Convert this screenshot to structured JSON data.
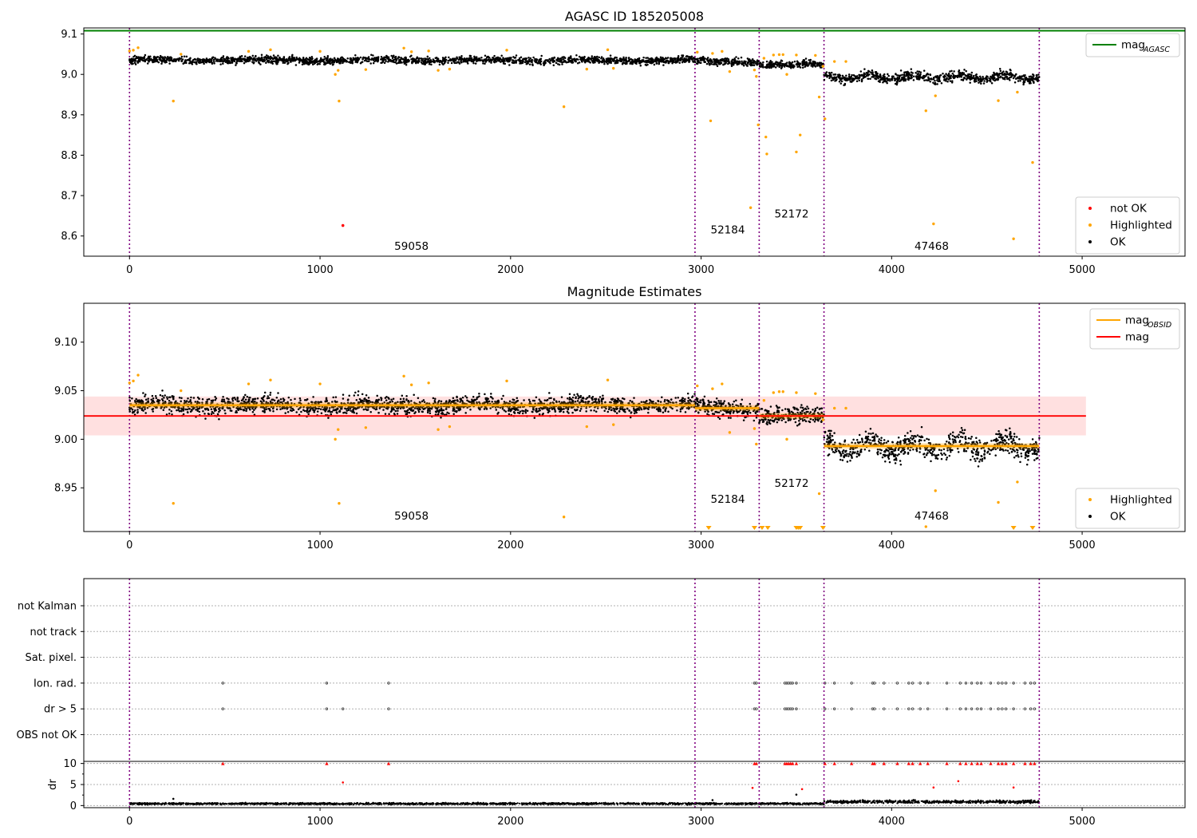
{
  "chart_data": [
    {
      "type": "scatter",
      "title": "AGASC ID 185205008",
      "xlim": [
        -240,
        5540
      ],
      "ylim": [
        8.55,
        9.115
      ],
      "xticks": [
        0,
        1000,
        2000,
        3000,
        4000,
        5000
      ],
      "yticks": [
        8.6,
        8.7,
        8.8,
        8.9,
        9.0,
        9.1
      ],
      "ytick_labels": [
        "8.6",
        "8.7",
        "8.8",
        "8.9",
        "9.0",
        "9.1"
      ],
      "obs_boundaries": [
        0,
        2968,
        3305,
        3645,
        4775
      ],
      "obs_labels": [
        {
          "text": "59058",
          "x": 1480,
          "y": 8.566
        },
        {
          "text": "52184",
          "x": 3140,
          "y": 8.606
        },
        {
          "text": "52172",
          "x": 3475,
          "y": 8.646
        },
        {
          "text": "47468",
          "x": 4210,
          "y": 8.566
        }
      ],
      "mag_agasc": 9.108,
      "ok_segments": [
        {
          "x0": 0,
          "x1": 2968,
          "mean": 9.035,
          "spread": 0.012
        },
        {
          "x0": 2968,
          "x1": 3305,
          "mean": 9.032,
          "spread": 0.012
        },
        {
          "x0": 3305,
          "x1": 3645,
          "mean": 9.024,
          "spread": 0.012
        },
        {
          "x0": 3645,
          "x1": 4775,
          "mean": 8.993,
          "spread": 0.016
        }
      ],
      "highlighted": [
        [
          0,
          9.058
        ],
        [
          20,
          9.06
        ],
        [
          45,
          9.066
        ],
        [
          230,
          8.934
        ],
        [
          270,
          9.05
        ],
        [
          625,
          9.057
        ],
        [
          740,
          9.061
        ],
        [
          1000,
          9.057
        ],
        [
          1080,
          9.0
        ],
        [
          1095,
          9.01
        ],
        [
          1100,
          8.934
        ],
        [
          1240,
          9.012
        ],
        [
          1440,
          9.065
        ],
        [
          1480,
          9.056
        ],
        [
          1570,
          9.058
        ],
        [
          1620,
          9.01
        ],
        [
          1680,
          9.013
        ],
        [
          1980,
          9.06
        ],
        [
          2280,
          8.92
        ],
        [
          2400,
          9.013
        ],
        [
          2510,
          9.061
        ],
        [
          2540,
          9.015
        ],
        [
          2980,
          9.055
        ],
        [
          3050,
          8.885
        ],
        [
          3060,
          9.052
        ],
        [
          3110,
          9.057
        ],
        [
          3150,
          9.007
        ],
        [
          3260,
          8.67
        ],
        [
          3280,
          9.011
        ],
        [
          3290,
          8.995
        ],
        [
          3300,
          8.875
        ],
        [
          3330,
          9.04
        ],
        [
          3340,
          8.845
        ],
        [
          3345,
          8.803
        ],
        [
          3380,
          9.048
        ],
        [
          3410,
          9.049
        ],
        [
          3430,
          9.049
        ],
        [
          3450,
          9.0
        ],
        [
          3500,
          8.808
        ],
        [
          3500,
          9.048
        ],
        [
          3520,
          8.85
        ],
        [
          3600,
          9.047
        ],
        [
          3620,
          8.944
        ],
        [
          3640,
          9.02
        ],
        [
          3650,
          8.89
        ],
        [
          3700,
          9.032
        ],
        [
          3760,
          9.032
        ],
        [
          4180,
          8.91
        ],
        [
          4220,
          8.63
        ],
        [
          4230,
          8.947
        ],
        [
          4560,
          8.935
        ],
        [
          4640,
          8.593
        ],
        [
          4660,
          8.956
        ],
        [
          4740,
          8.782
        ]
      ],
      "not_ok": [
        [
          1120,
          8.626
        ]
      ],
      "legend_agasc": [
        {
          "label": "mag",
          "sub": "AGASC",
          "color": "#008000"
        }
      ],
      "legend_points": [
        {
          "label": "not OK",
          "color": "#ff0000"
        },
        {
          "label": "Highlighted",
          "color": "#ffa500"
        },
        {
          "label": "OK",
          "color": "#000000"
        }
      ]
    },
    {
      "type": "scatter",
      "title": "Magnitude Estimates",
      "xlim": [
        -240,
        5540
      ],
      "ylim": [
        8.905,
        9.14
      ],
      "xticks": [
        0,
        1000,
        2000,
        3000,
        4000,
        5000
      ],
      "yticks": [
        8.95,
        9.0,
        9.05,
        9.1
      ],
      "ytick_labels": [
        "8.95",
        "9.00",
        "9.05",
        "9.10"
      ],
      "obs_boundaries": [
        0,
        2968,
        3305,
        3645,
        4775
      ],
      "obs_labels": [
        {
          "text": "59058",
          "x": 1480,
          "y": 8.9175
        },
        {
          "text": "52184",
          "x": 3140,
          "y": 8.9345
        },
        {
          "text": "52172",
          "x": 3475,
          "y": 8.951
        },
        {
          "text": "47468",
          "x": 4210,
          "y": 8.9175
        }
      ],
      "mag_mean": 9.024,
      "mag_band": [
        9.004,
        9.044
      ],
      "mag_band_x": [
        -240,
        5020
      ],
      "mag_obsid_steps": [
        {
          "x0": 0,
          "x1": 2968,
          "y": 9.035
        },
        {
          "x0": 2968,
          "x1": 3305,
          "y": 9.032
        },
        {
          "x0": 3305,
          "x1": 3645,
          "y": 9.024
        },
        {
          "x0": 3645,
          "x1": 4775,
          "y": 8.993
        }
      ],
      "out_of_range_markers": [
        3040,
        3280,
        3320,
        3350,
        3500,
        3510,
        3520,
        3640,
        4640,
        4740
      ],
      "legend_lines": [
        {
          "label": "mag",
          "sub": "OBSID",
          "color": "#ffa500"
        },
        {
          "label": "mag",
          "sub": "",
          "color": "#ff0000"
        }
      ],
      "legend_points": [
        {
          "label": "Highlighted",
          "color": "#ffa500"
        },
        {
          "label": "OK",
          "color": "#000000"
        }
      ]
    },
    {
      "type": "scatter",
      "xlim": [
        -240,
        5540
      ],
      "xticks": [
        0,
        1000,
        2000,
        3000,
        4000,
        5000
      ],
      "flag_rows": [
        "not Kalman",
        "not track",
        "Sat. pixel.",
        "Ion. rad.",
        "dr > 5",
        "OBS not OK"
      ],
      "flag_events_x": [
        490,
        1035,
        1120,
        1360,
        3280,
        3290,
        3440,
        3450,
        3460,
        3470,
        3480,
        3500,
        3650,
        3700,
        3790,
        3900,
        3910,
        3960,
        4030,
        4090,
        4110,
        4150,
        4190,
        4290,
        4360,
        4390,
        4420,
        4450,
        4470,
        4520,
        4560,
        4580,
        4600,
        4640,
        4700,
        4730,
        4750
      ],
      "ion_rad_x": [
        490,
        1035,
        1360,
        3280,
        3290,
        3440,
        3450,
        3460,
        3470,
        3480,
        3500,
        3650,
        3700,
        3790,
        3900,
        3910,
        3960,
        4030,
        4090,
        4110,
        4150,
        4190,
        4290,
        4360,
        4390,
        4420,
        4450,
        4470,
        4520,
        4560,
        4580,
        4600,
        4640,
        4700,
        4730,
        4750
      ],
      "dr_ylabel": "dr",
      "dr_ylim": [
        -0.5,
        10.5
      ],
      "dr_yticks": [
        0,
        5,
        10
      ],
      "dr_clipped_x": [
        490,
        1035,
        1360,
        3280,
        3290,
        3440,
        3450,
        3460,
        3470,
        3480,
        3500,
        3650,
        3700,
        3790,
        3900,
        3910,
        3960,
        4030,
        4090,
        4110,
        4150,
        4190,
        4290,
        4360,
        4390,
        4420,
        4450,
        4470,
        4520,
        4560,
        4580,
        4600,
        4640,
        4700,
        4730,
        4750
      ],
      "dr_mid_points": [
        [
          1120,
          5.5
        ],
        [
          3270,
          4.2
        ],
        [
          3530,
          3.9
        ],
        [
          3500,
          2.6
        ],
        [
          4220,
          4.3
        ],
        [
          4350,
          5.8
        ],
        [
          4640,
          4.3
        ],
        [
          230,
          1.6
        ],
        [
          3060,
          1.3
        ]
      ]
    }
  ]
}
